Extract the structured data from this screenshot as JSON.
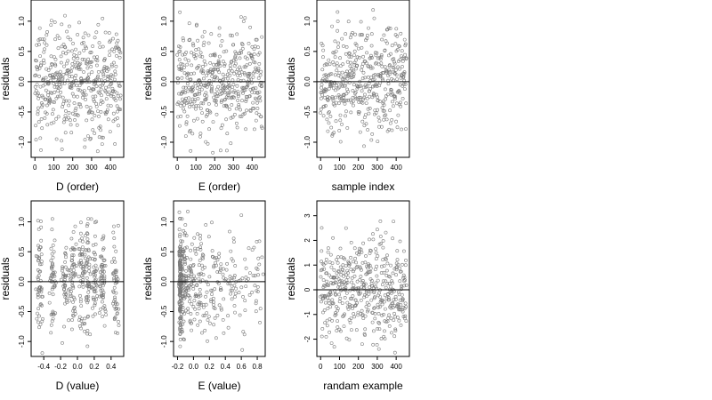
{
  "chart_data": [
    {
      "type": "scatter",
      "xlabel": "D (order)",
      "ylabel": "residuals",
      "x_ticks": [
        "0",
        "100",
        "200",
        "300",
        "400"
      ],
      "y_ticks": [
        "1.0",
        "0.5",
        "0.0",
        "-0.5",
        "-1.0"
      ],
      "xlim": [
        -20,
        470
      ],
      "ylim": [
        -1.25,
        1.35
      ],
      "reference_line_y": 0,
      "n_points": 460,
      "x_pattern": "order",
      "y_spread": 0.45,
      "grid": false
    },
    {
      "type": "scatter",
      "xlabel": "E (order)",
      "ylabel": "residuals",
      "x_ticks": [
        "0",
        "100",
        "200",
        "300",
        "400"
      ],
      "y_ticks": [
        "1.0",
        "0.5",
        "0.0",
        "-0.5",
        "-1.0"
      ],
      "xlim": [
        -20,
        470
      ],
      "ylim": [
        -1.25,
        1.35
      ],
      "reference_line_y": 0,
      "n_points": 460,
      "x_pattern": "order",
      "y_spread": 0.45,
      "grid": false
    },
    {
      "type": "scatter",
      "xlabel": "sample index",
      "ylabel": "residuals",
      "x_ticks": [
        "0",
        "100",
        "200",
        "300",
        "400"
      ],
      "y_ticks": [
        "1.0",
        "0.5",
        "0.0",
        "-0.5",
        "-1.0"
      ],
      "xlim": [
        -20,
        470
      ],
      "ylim": [
        -1.25,
        1.35
      ],
      "reference_line_y": 0,
      "n_points": 460,
      "x_pattern": "order",
      "y_spread": 0.45,
      "grid": false
    },
    {
      "type": "scatter",
      "xlabel": "D (value)",
      "ylabel": "residuals",
      "x_ticks": [
        "-0.4",
        "-0.2",
        "0.0",
        "0.2",
        "0.4"
      ],
      "y_ticks": [
        "1.0",
        "0.5",
        "0.0",
        "-0.5",
        "-1.0"
      ],
      "xlim": [
        -0.55,
        0.55
      ],
      "ylim": [
        -1.25,
        1.35
      ],
      "reference_line_y": 0,
      "n_points": 460,
      "x_pattern": "clustered_columns",
      "y_spread": 0.45,
      "grid": false
    },
    {
      "type": "scatter",
      "xlabel": "E (value)",
      "ylabel": "residuals",
      "x_ticks": [
        "-0.2",
        "0.0",
        "0.2",
        "0.4",
        "0.6",
        "0.8"
      ],
      "y_ticks": [
        "1.0",
        "0.5",
        "0.0",
        "-0.5",
        "-1.0"
      ],
      "xlim": [
        -0.25,
        0.9
      ],
      "ylim": [
        -1.25,
        1.35
      ],
      "reference_line_y": 0,
      "n_points": 460,
      "x_pattern": "right_skewed",
      "y_spread": 0.45,
      "grid": false
    },
    {
      "type": "scatter",
      "xlabel": "randam example",
      "ylabel": "residuals",
      "x_ticks": [
        "0",
        "100",
        "200",
        "300",
        "400"
      ],
      "y_ticks": [
        "3",
        "2",
        "1",
        "0",
        "-1",
        "-2"
      ],
      "xlim": [
        -20,
        470
      ],
      "ylim": [
        -2.7,
        3.6
      ],
      "reference_line_y": 0,
      "n_points": 460,
      "x_pattern": "order",
      "y_spread": 1.0,
      "grid": false
    }
  ]
}
